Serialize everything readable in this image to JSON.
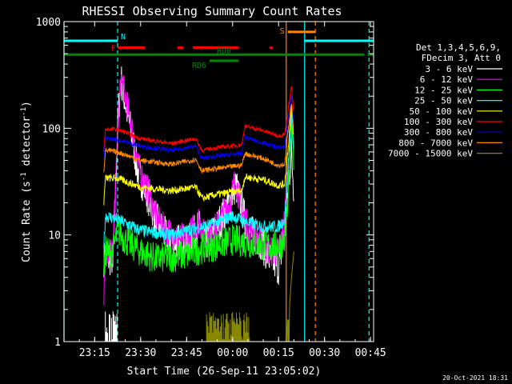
{
  "chart_data": {
    "type": "line",
    "title": "RHESSI Observing Summary Count Rates",
    "xlabel": "Start Time (26-Sep-11 23:05:02)",
    "ylabel_prefix": "Count Rate (s",
    "ylabel_mid": " detector",
    "ylabel_suffix": ")",
    "ylabel_sup": "-1",
    "footer": "20-Oct-2021 18:31",
    "x_axis": {
      "unit": "minutes after 23:05:02",
      "range": [
        0,
        101
      ],
      "ticks": [
        {
          "t": 10,
          "label": "23:15"
        },
        {
          "t": 25,
          "label": "23:30"
        },
        {
          "t": 40,
          "label": "23:45"
        },
        {
          "t": 55,
          "label": "00:00"
        },
        {
          "t": 70,
          "label": "00:15"
        },
        {
          "t": 85,
          "label": "00:30"
        },
        {
          "t": 100,
          "label": "00:45"
        }
      ]
    },
    "y_axis": {
      "scale": "log",
      "range": [
        1,
        1000
      ],
      "ticks": [
        {
          "v": 1,
          "label": "1"
        },
        {
          "v": 10,
          "label": "10"
        },
        {
          "v": 100,
          "label": "100"
        },
        {
          "v": 1000,
          "label": "1000"
        }
      ]
    },
    "legend_header": [
      "Det 1,3,4,5,6,9,",
      "FDecim 3, Att 0"
    ],
    "series": [
      {
        "name": "3 - 6 keV",
        "color": "#ffffff",
        "noise": 0.35,
        "points": [
          [
            13,
            6
          ],
          [
            16,
            6
          ],
          [
            17.5,
            100
          ],
          [
            18.5,
            300
          ],
          [
            20,
            170
          ],
          [
            22,
            90
          ],
          [
            24,
            40
          ],
          [
            27,
            25
          ],
          [
            30,
            14
          ],
          [
            33,
            10
          ],
          [
            36,
            9
          ],
          [
            40,
            8
          ],
          [
            44,
            12
          ],
          [
            46,
            8
          ],
          [
            50,
            12
          ],
          [
            54,
            20
          ],
          [
            56,
            30
          ],
          [
            58,
            18
          ],
          [
            60,
            11
          ],
          [
            64,
            9
          ],
          [
            67,
            6
          ],
          [
            70,
            5
          ],
          [
            72,
            10
          ],
          [
            73,
            25
          ],
          [
            74.2,
            60
          ],
          [
            75,
            25
          ]
        ]
      },
      {
        "name": "6 - 12 keV",
        "color": "#ff00ff",
        "noise": 0.3,
        "points": [
          [
            13,
            3
          ],
          [
            13.5,
            7
          ],
          [
            16,
            7
          ],
          [
            17.5,
            80
          ],
          [
            18.5,
            280
          ],
          [
            20,
            200
          ],
          [
            22,
            110
          ],
          [
            24,
            45
          ],
          [
            27,
            28
          ],
          [
            30,
            15
          ],
          [
            33,
            11
          ],
          [
            36,
            10
          ],
          [
            40,
            9
          ],
          [
            44,
            14
          ],
          [
            46,
            9
          ],
          [
            50,
            12
          ],
          [
            54,
            20
          ],
          [
            56,
            33
          ],
          [
            58,
            17
          ],
          [
            60,
            12
          ],
          [
            64,
            9
          ],
          [
            67,
            7
          ],
          [
            70,
            7
          ],
          [
            72,
            14
          ],
          [
            73,
            40
          ],
          [
            74.2,
            150
          ],
          [
            75,
            60
          ]
        ]
      },
      {
        "name": "12 - 25 keV",
        "color": "#00ff00",
        "noise": 0.3,
        "points": [
          [
            13,
            5
          ],
          [
            13.5,
            7
          ],
          [
            16,
            7
          ],
          [
            17.5,
            11
          ],
          [
            20,
            9
          ],
          [
            25,
            7
          ],
          [
            30,
            6
          ],
          [
            40,
            6.5
          ],
          [
            45,
            7.5
          ],
          [
            50,
            8
          ],
          [
            55,
            9
          ],
          [
            60,
            8.5
          ],
          [
            65,
            8
          ],
          [
            70,
            8
          ],
          [
            72,
            9
          ],
          [
            73,
            20
          ],
          [
            74.2,
            100
          ],
          [
            75,
            50
          ]
        ]
      },
      {
        "name": "25 - 50 keV",
        "color": "#00ffff",
        "noise": 0.12,
        "points": [
          [
            13,
            8
          ],
          [
            13.5,
            15
          ],
          [
            17.5,
            14
          ],
          [
            25,
            11
          ],
          [
            35,
            10
          ],
          [
            40,
            11
          ],
          [
            45,
            12
          ],
          [
            50,
            13
          ],
          [
            55,
            15
          ],
          [
            60,
            13
          ],
          [
            65,
            12
          ],
          [
            70,
            12
          ],
          [
            72,
            14
          ],
          [
            73,
            40
          ],
          [
            74.2,
            130
          ],
          [
            75,
            60
          ]
        ]
      },
      {
        "name": "50 - 100 keV",
        "color": "#ffff00",
        "noise": 0.07,
        "points": [
          [
            13,
            20
          ],
          [
            13.5,
            34
          ],
          [
            17.5,
            34
          ],
          [
            25,
            28
          ],
          [
            35,
            26
          ],
          [
            43,
            28
          ],
          [
            45,
            22
          ],
          [
            50,
            24
          ],
          [
            58,
            26
          ],
          [
            59,
            35
          ],
          [
            65,
            33
          ],
          [
            70,
            29
          ],
          [
            72,
            30
          ],
          [
            73,
            60
          ],
          [
            74.2,
            150
          ],
          [
            75,
            80
          ]
        ]
      },
      {
        "name": "100 - 300 keV",
        "color": "#ff0000",
        "noise": 0.04,
        "points": [
          [
            13,
            60
          ],
          [
            13.5,
            98
          ],
          [
            17.5,
            98
          ],
          [
            25,
            80
          ],
          [
            35,
            72
          ],
          [
            43,
            80
          ],
          [
            45,
            62
          ],
          [
            50,
            66
          ],
          [
            58,
            70
          ],
          [
            59,
            105
          ],
          [
            65,
            95
          ],
          [
            70,
            85
          ],
          [
            72,
            88
          ],
          [
            73,
            140
          ],
          [
            74.2,
            250
          ],
          [
            75,
            130
          ]
        ]
      },
      {
        "name": "300 - 800 keV",
        "color": "#0000ff",
        "noise": 0.04,
        "points": [
          [
            13,
            50
          ],
          [
            13.5,
            80
          ],
          [
            17.5,
            78
          ],
          [
            25,
            68
          ],
          [
            35,
            62
          ],
          [
            43,
            68
          ],
          [
            45,
            52
          ],
          [
            50,
            55
          ],
          [
            58,
            58
          ],
          [
            59,
            82
          ],
          [
            65,
            73
          ],
          [
            70,
            66
          ],
          [
            72,
            68
          ],
          [
            73,
            120
          ],
          [
            74.2,
            200
          ],
          [
            75,
            110
          ]
        ]
      },
      {
        "name": "800 - 7000 keV",
        "color": "#ff8800",
        "noise": 0.05,
        "points": [
          [
            13,
            40
          ],
          [
            13.5,
            62
          ],
          [
            17.5,
            60
          ],
          [
            25,
            50
          ],
          [
            35,
            46
          ],
          [
            43,
            51
          ],
          [
            45,
            40
          ],
          [
            50,
            42
          ],
          [
            58,
            45
          ],
          [
            59,
            58
          ],
          [
            65,
            52
          ],
          [
            70,
            45
          ],
          [
            72,
            46
          ],
          [
            73,
            90
          ],
          [
            74.2,
            170
          ],
          [
            75,
            95
          ]
        ]
      },
      {
        "name": "7000 - 15000 keV",
        "color": "#888800",
        "noise": 0,
        "points": [
          [
            72,
            1
          ],
          [
            73,
            1
          ],
          [
            73.5,
            2
          ],
          [
            74.2,
            4
          ],
          [
            75,
            7
          ]
        ]
      }
    ],
    "segments": {
      "N": {
        "label": "N",
        "color": "#00ffff",
        "y": 660,
        "ranges": [
          [
            0,
            17.5
          ],
          [
            78.5,
            101
          ]
        ]
      },
      "S": {
        "label": "S",
        "color": "#ff8800",
        "y": 800,
        "ranges": [
          [
            73,
            82
          ]
        ]
      },
      "F": {
        "label": "F",
        "color": "#ff0000",
        "y": 570,
        "ranges": [
          [
            17.5,
            26.5
          ],
          [
            37,
            39
          ],
          [
            42,
            57
          ],
          [
            67,
            68
          ]
        ]
      },
      "RD0": {
        "label": "RD0",
        "color": "#008800",
        "y": 490,
        "ranges": [
          [
            0,
            98
          ],
          [
            99,
            101
          ]
        ]
      },
      "RD6": {
        "label": "RD6",
        "color": "#008800",
        "y": 430,
        "ranges": [
          [
            47.5,
            57
          ]
        ]
      }
    },
    "markers": [
      {
        "t": 0,
        "color": "#00ffff",
        "style": "solid"
      },
      {
        "t": 17.5,
        "color": "#00ffff",
        "style": "dashed"
      },
      {
        "t": 72.5,
        "color": "#ff8800",
        "style": "solid"
      },
      {
        "t": 78.5,
        "color": "#00ffff",
        "style": "solid"
      },
      {
        "t": 82,
        "color": "#ff8800",
        "style": "dashed"
      },
      {
        "t": 99.5,
        "color": "#00ffff",
        "style": "dashed"
      }
    ]
  }
}
